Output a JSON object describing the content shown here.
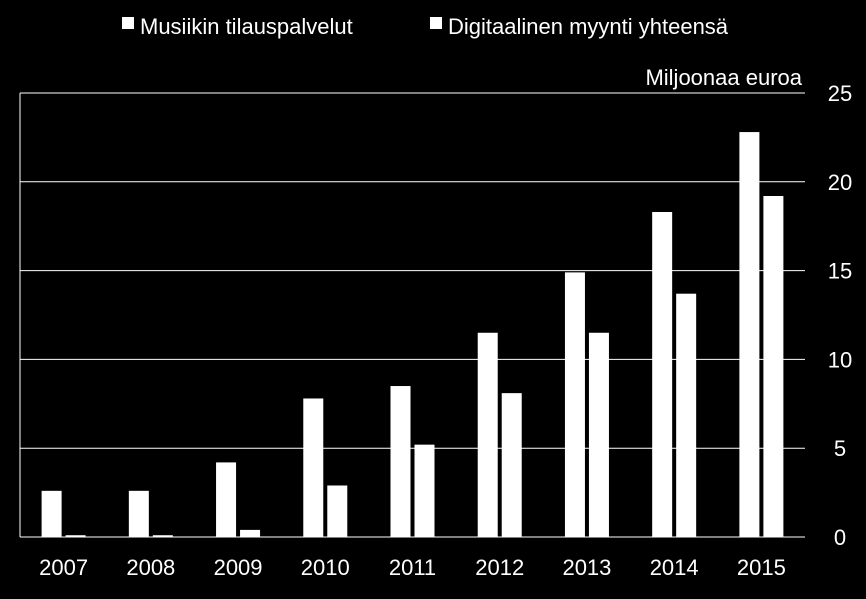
{
  "chart_data": {
    "type": "bar",
    "title": "",
    "unit_label": "Miljoonaa euroa",
    "xlabel": "",
    "ylabel": "Miljoonaa euroa",
    "categories": [
      "2007",
      "2008",
      "2009",
      "2010",
      "2011",
      "2012",
      "2013",
      "2014",
      "2015"
    ],
    "series": [
      {
        "name": "Musiikin tilauspalvelut",
        "values": [
          2.6,
          2.6,
          4.2,
          7.8,
          8.5,
          11.5,
          14.9,
          18.3,
          22.8
        ]
      },
      {
        "name": "Digitaalinen myynti yhteensä",
        "values": [
          0.1,
          0.1,
          0.4,
          2.9,
          5.2,
          8.1,
          11.5,
          13.7,
          19.2
        ]
      }
    ],
    "ylim": [
      0,
      25
    ],
    "yticks": [
      0,
      5,
      10,
      15,
      20,
      25
    ],
    "grid": true,
    "legend_position": "top",
    "y_axis_side": "right",
    "colors": {
      "background": "#000000",
      "bars": "#ffffff",
      "grid": "#ffffff",
      "text": "#ffffff"
    }
  }
}
